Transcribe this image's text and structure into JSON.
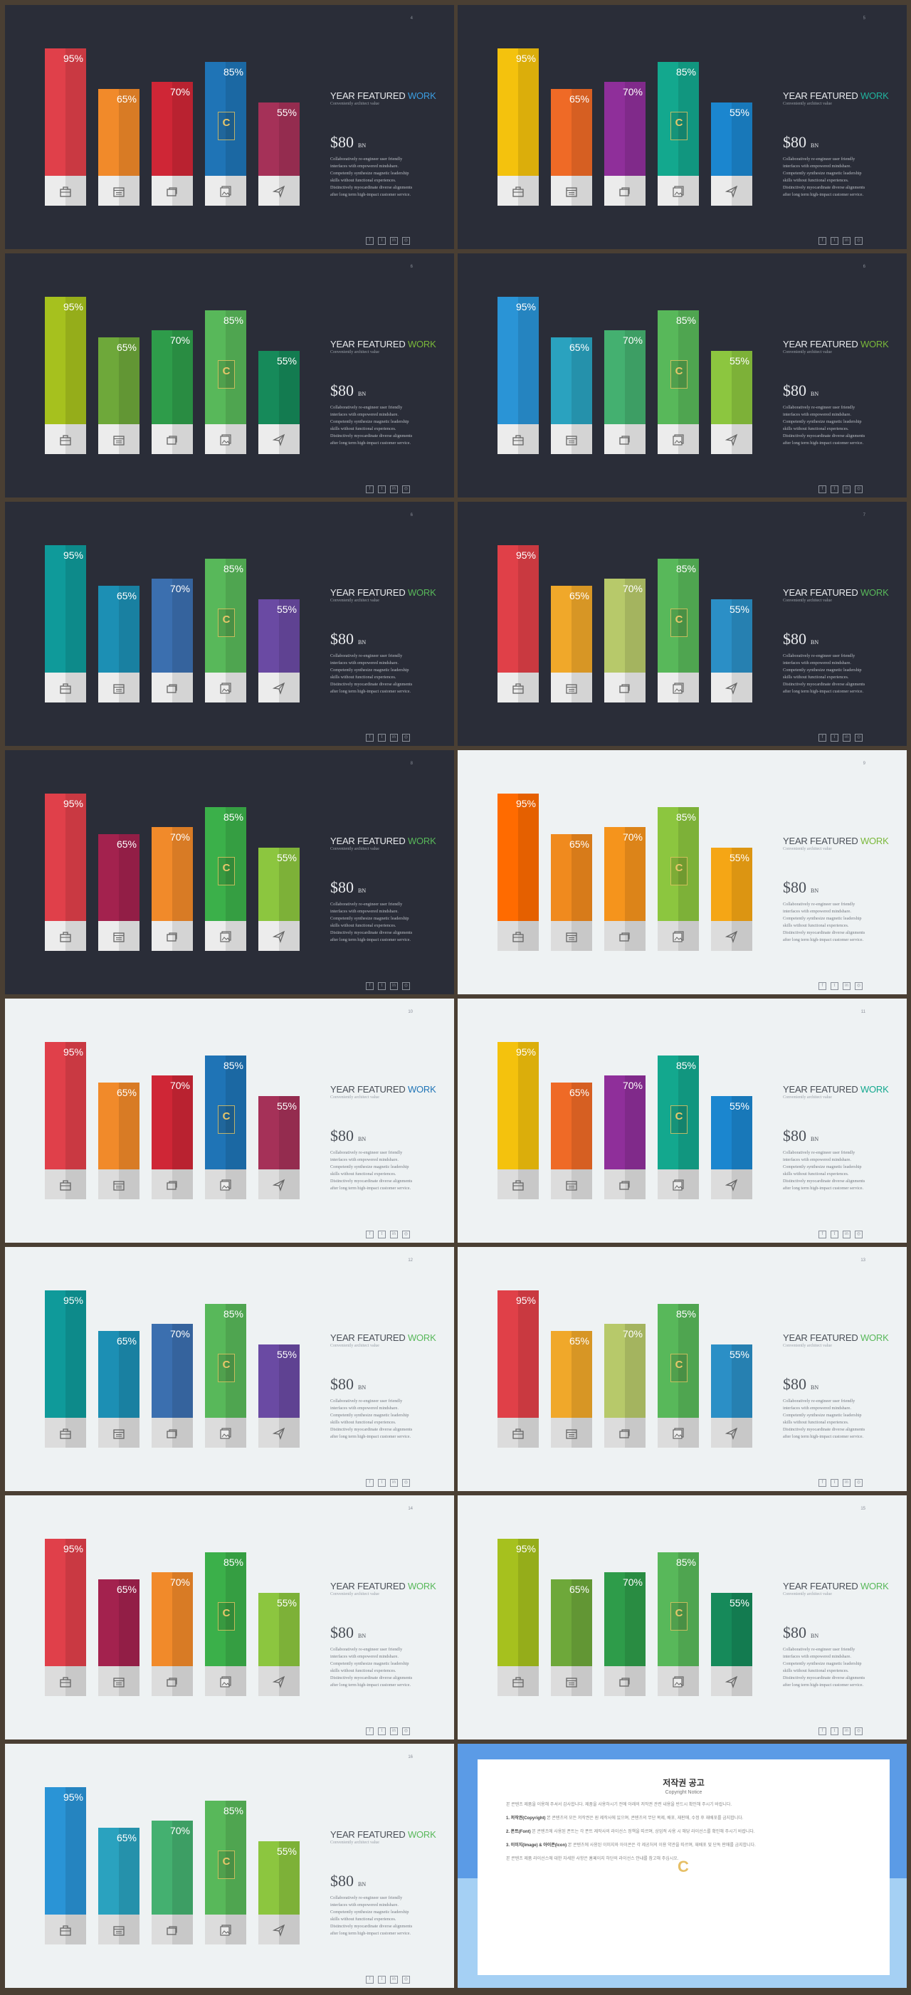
{
  "common": {
    "title_main": "YEAR FEATURED",
    "title_accent": "WORK",
    "subtitle": "Conveniently architect value",
    "price": "$80",
    "price_unit": "BN",
    "body": "Collaboratively re-engineer user friendly interfaces with empowered mindshare. Competently synthesize magnetic leadership skills without functional experiences. Distinctively myocardinate diverse alignments after long term high-impact customer service.",
    "social_icons": [
      "facebook-icon",
      "twitter-icon",
      "linkedin-icon",
      "instagram-icon"
    ],
    "social_glyphs": [
      "f",
      "t",
      "in",
      "◎"
    ],
    "base_icons": [
      "briefcase-icon",
      "calendar-icon",
      "folders-icon",
      "images-icon",
      "send-icon"
    ]
  },
  "chart_data": {
    "type": "bar",
    "categories": [
      "",
      "",
      "",
      "",
      ""
    ],
    "values": [
      95,
      65,
      70,
      85,
      55
    ],
    "value_labels": [
      "95%",
      "65%",
      "70%",
      "85%",
      "55%"
    ],
    "ylim": [
      0,
      100
    ]
  },
  "slides": [
    {
      "page": "4",
      "theme": "dark",
      "accent": "#3b9de0",
      "colors": [
        "#e0404a",
        "#f18a2a",
        "#cf2636",
        "#1f74b6",
        "#a53158"
      ]
    },
    {
      "page": "5",
      "theme": "dark",
      "accent": "#20b39e",
      "colors": [
        "#f4c20d",
        "#ef6a26",
        "#8f2f9a",
        "#13a88e",
        "#1b86cf"
      ]
    },
    {
      "page": "6",
      "theme": "dark",
      "accent": "#7ab83a",
      "colors": [
        "#a6c11e",
        "#6ea83a",
        "#2e9c4a",
        "#58b85a",
        "#168a5a"
      ]
    },
    {
      "page": "6",
      "theme": "dark",
      "accent": "#7ab83a",
      "colors": [
        "#2a94d6",
        "#2aa2bf",
        "#44b070",
        "#58b85a",
        "#8cc63f"
      ]
    },
    {
      "page": "6",
      "theme": "dark",
      "accent": "#58b85a",
      "colors": [
        "#0f9a9a",
        "#1c8fb4",
        "#3b6faf",
        "#58b85a",
        "#6a4aa3"
      ]
    },
    {
      "page": "7",
      "theme": "dark",
      "accent": "#58b85a",
      "colors": [
        "#e04048",
        "#f0a82a",
        "#b7c96a",
        "#58b85a",
        "#2b8fc6"
      ]
    },
    {
      "page": "8",
      "theme": "dark",
      "accent": "#58b85a",
      "colors": [
        "#e0404a",
        "#a3224e",
        "#f18a2a",
        "#3bb04a",
        "#8cc63f"
      ]
    },
    {
      "page": "9",
      "theme": "light",
      "accent": "#7ab83a",
      "colors": [
        "#ff6b00",
        "#f08a1e",
        "#f5941c",
        "#8cc63f",
        "#f5a615"
      ]
    },
    {
      "page": "10",
      "theme": "light",
      "accent": "#1f74b6",
      "colors": [
        "#e0404a",
        "#f18a2a",
        "#cf2636",
        "#1f74b6",
        "#a53158"
      ]
    },
    {
      "page": "11",
      "theme": "light",
      "accent": "#13a88e",
      "colors": [
        "#f4c20d",
        "#ef6a26",
        "#8f2f9a",
        "#13a88e",
        "#1b86cf"
      ]
    },
    {
      "page": "12",
      "theme": "light",
      "accent": "#58b85a",
      "colors": [
        "#0f9a9a",
        "#1c8fb4",
        "#3b6faf",
        "#58b85a",
        "#6a4aa3"
      ]
    },
    {
      "page": "13",
      "theme": "light",
      "accent": "#58b85a",
      "colors": [
        "#e04048",
        "#f0a82a",
        "#b7c96a",
        "#58b85a",
        "#2b8fc6"
      ]
    },
    {
      "page": "14",
      "theme": "light",
      "accent": "#58b85a",
      "colors": [
        "#e0404a",
        "#a3224e",
        "#f18a2a",
        "#3bb04a",
        "#8cc63f"
      ]
    },
    {
      "page": "15",
      "theme": "light",
      "accent": "#58b85a",
      "colors": [
        "#a6c11e",
        "#6ea83a",
        "#2e9c4a",
        "#58b85a",
        "#168a5a"
      ]
    },
    {
      "page": "16",
      "theme": "light",
      "accent": "#58b85a",
      "colors": [
        "#2a94d6",
        "#2aa2bf",
        "#44b070",
        "#58b85a",
        "#8cc63f"
      ]
    }
  ],
  "copyright": {
    "title": "저작권 공고",
    "subtitle": "Copyright Notice",
    "intro": "본 콘텐츠 제품을 이용해 주셔서 감사합니다. 제품을 사용하시기 전에 아래의 저작권 관련 내용을 반드시 확인해 주시기 바랍니다.",
    "p1_head": "1. 저작권(Copyright)",
    "p1": "본 콘텐츠의 모든 저작권은 원 제작사에 있으며, 콘텐츠의 무단 복제, 배포, 재판매, 수정 후 재배포를 금지합니다.",
    "p2_head": "2. 폰트(Font)",
    "p2": "본 콘텐츠에 사용된 폰트는 각 폰트 제작사의 라이선스 정책을 따르며, 상업적 사용 시 해당 라이선스를 확인해 주시기 바랍니다.",
    "p3_head": "3. 이미지(Image) & 아이콘(Icon)",
    "p3": "본 콘텐츠에 사용된 이미지와 아이콘은 각 제공처의 이용 약관을 따르며, 재배포 및 단독 판매를 금지합니다.",
    "outro": "본 콘텐츠 제품 라이선스에 대한 자세한 사항은 홈페이지 하단의 라이선스 안내를 참고해 주십시오."
  }
}
